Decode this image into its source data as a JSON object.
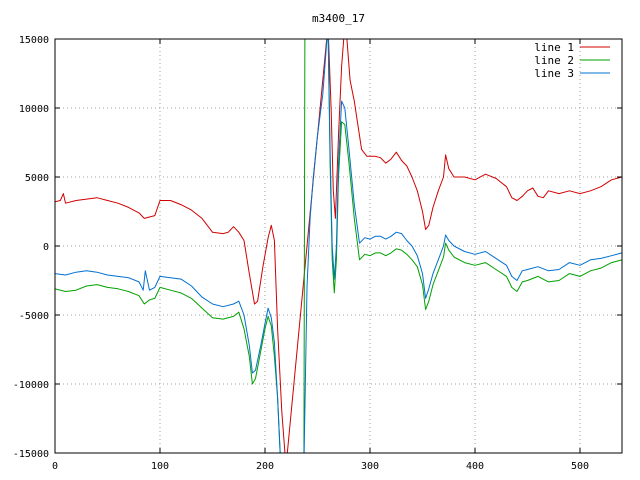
{
  "chart_data": {
    "type": "line",
    "title": "m3400_17",
    "xlabel": "",
    "ylabel": "",
    "xlim": [
      0,
      540
    ],
    "ylim": [
      -15000,
      15000
    ],
    "x_ticks": [
      0,
      100,
      200,
      300,
      400,
      500
    ],
    "y_ticks": [
      -15000,
      -10000,
      -5000,
      0,
      5000,
      10000,
      15000
    ],
    "grid": true,
    "legend_position": "top-right",
    "series": [
      {
        "name": "line 1",
        "color": "#d00000",
        "points": [
          [
            0,
            3200
          ],
          [
            5,
            3300
          ],
          [
            8,
            3800
          ],
          [
            10,
            3100
          ],
          [
            20,
            3300
          ],
          [
            30,
            3400
          ],
          [
            40,
            3500
          ],
          [
            50,
            3300
          ],
          [
            60,
            3100
          ],
          [
            70,
            2800
          ],
          [
            80,
            2400
          ],
          [
            85,
            2000
          ],
          [
            90,
            2100
          ],
          [
            95,
            2200
          ],
          [
            100,
            3300
          ],
          [
            110,
            3300
          ],
          [
            120,
            3000
          ],
          [
            130,
            2600
          ],
          [
            140,
            2000
          ],
          [
            150,
            1000
          ],
          [
            160,
            900
          ],
          [
            165,
            1000
          ],
          [
            170,
            1400
          ],
          [
            175,
            1000
          ],
          [
            180,
            400
          ],
          [
            185,
            -2000
          ],
          [
            190,
            -4200
          ],
          [
            193,
            -4000
          ],
          [
            198,
            -1500
          ],
          [
            203,
            600
          ],
          [
            206,
            1500
          ],
          [
            209,
            400
          ],
          [
            212,
            -6000
          ],
          [
            216,
            -12000
          ],
          [
            220,
            -16000
          ],
          [
            260,
            16000
          ],
          [
            263,
            10000
          ],
          [
            265,
            4000
          ],
          [
            267,
            2000
          ],
          [
            270,
            8000
          ],
          [
            273,
            13000
          ],
          [
            276,
            16000
          ],
          [
            278,
            15000
          ],
          [
            281,
            12000
          ],
          [
            285,
            10500
          ],
          [
            288,
            9000
          ],
          [
            292,
            7000
          ],
          [
            297,
            6500
          ],
          [
            305,
            6500
          ],
          [
            310,
            6400
          ],
          [
            315,
            6000
          ],
          [
            320,
            6300
          ],
          [
            325,
            6800
          ],
          [
            330,
            6200
          ],
          [
            335,
            5800
          ],
          [
            340,
            5000
          ],
          [
            345,
            4000
          ],
          [
            350,
            2500
          ],
          [
            353,
            1200
          ],
          [
            356,
            1500
          ],
          [
            360,
            2800
          ],
          [
            365,
            4000
          ],
          [
            370,
            5000
          ],
          [
            372,
            6600
          ],
          [
            375,
            5600
          ],
          [
            380,
            5000
          ],
          [
            390,
            5000
          ],
          [
            400,
            4800
          ],
          [
            410,
            5200
          ],
          [
            420,
            4900
          ],
          [
            430,
            4300
          ],
          [
            435,
            3500
          ],
          [
            440,
            3300
          ],
          [
            445,
            3600
          ],
          [
            450,
            4000
          ],
          [
            455,
            4200
          ],
          [
            460,
            3600
          ],
          [
            465,
            3500
          ],
          [
            470,
            4000
          ],
          [
            480,
            3800
          ],
          [
            490,
            4000
          ],
          [
            500,
            3800
          ],
          [
            510,
            4000
          ],
          [
            520,
            4300
          ],
          [
            530,
            4800
          ],
          [
            540,
            5000
          ]
        ]
      },
      {
        "name": "line 2",
        "color": "#00a000",
        "points": [
          [
            0,
            -3100
          ],
          [
            10,
            -3300
          ],
          [
            20,
            -3200
          ],
          [
            30,
            -2900
          ],
          [
            40,
            -2800
          ],
          [
            50,
            -3000
          ],
          [
            60,
            -3100
          ],
          [
            70,
            -3300
          ],
          [
            80,
            -3600
          ],
          [
            85,
            -4200
          ],
          [
            90,
            -3900
          ],
          [
            95,
            -3800
          ],
          [
            100,
            -3000
          ],
          [
            110,
            -3200
          ],
          [
            120,
            -3400
          ],
          [
            130,
            -3800
          ],
          [
            140,
            -4500
          ],
          [
            150,
            -5200
          ],
          [
            160,
            -5300
          ],
          [
            170,
            -5100
          ],
          [
            175,
            -4800
          ],
          [
            180,
            -6000
          ],
          [
            185,
            -8000
          ],
          [
            188,
            -10000
          ],
          [
            191,
            -9600
          ],
          [
            196,
            -7600
          ],
          [
            200,
            -6000
          ],
          [
            203,
            -5100
          ],
          [
            206,
            -5800
          ],
          [
            209,
            -8000
          ],
          [
            212,
            -11000
          ],
          [
            215,
            -16000
          ],
          [
            237,
            -16000
          ],
          [
            238,
            16000
          ],
          [
            242,
            16000
          ],
          [
            246,
            16000
          ],
          [
            260,
            16000
          ],
          [
            262,
            6000
          ],
          [
            264,
            -1000
          ],
          [
            266,
            -3400
          ],
          [
            268,
            -1000
          ],
          [
            270,
            5000
          ],
          [
            273,
            9000
          ],
          [
            276,
            8800
          ],
          [
            280,
            6000
          ],
          [
            285,
            2000
          ],
          [
            290,
            -1000
          ],
          [
            295,
            -600
          ],
          [
            300,
            -700
          ],
          [
            305,
            -500
          ],
          [
            310,
            -500
          ],
          [
            315,
            -700
          ],
          [
            320,
            -500
          ],
          [
            325,
            -200
          ],
          [
            330,
            -300
          ],
          [
            335,
            -600
          ],
          [
            340,
            -1000
          ],
          [
            345,
            -1500
          ],
          [
            350,
            -2800
          ],
          [
            353,
            -4600
          ],
          [
            356,
            -4000
          ],
          [
            360,
            -2800
          ],
          [
            365,
            -1800
          ],
          [
            370,
            -800
          ],
          [
            372,
            200
          ],
          [
            375,
            -300
          ],
          [
            380,
            -800
          ],
          [
            390,
            -1200
          ],
          [
            400,
            -1400
          ],
          [
            410,
            -1200
          ],
          [
            420,
            -1700
          ],
          [
            430,
            -2200
          ],
          [
            435,
            -3000
          ],
          [
            440,
            -3300
          ],
          [
            445,
            -2600
          ],
          [
            450,
            -2500
          ],
          [
            460,
            -2200
          ],
          [
            470,
            -2600
          ],
          [
            480,
            -2500
          ],
          [
            490,
            -2000
          ],
          [
            500,
            -2200
          ],
          [
            510,
            -1800
          ],
          [
            520,
            -1600
          ],
          [
            530,
            -1200
          ],
          [
            540,
            -1000
          ]
        ]
      },
      {
        "name": "line 3",
        "color": "#0070d0",
        "points": [
          [
            0,
            -2000
          ],
          [
            10,
            -2100
          ],
          [
            20,
            -1900
          ],
          [
            30,
            -1800
          ],
          [
            40,
            -1900
          ],
          [
            50,
            -2100
          ],
          [
            60,
            -2200
          ],
          [
            70,
            -2300
          ],
          [
            80,
            -2600
          ],
          [
            84,
            -3200
          ],
          [
            86,
            -1800
          ],
          [
            90,
            -3200
          ],
          [
            95,
            -3000
          ],
          [
            100,
            -2200
          ],
          [
            110,
            -2300
          ],
          [
            120,
            -2400
          ],
          [
            130,
            -2900
          ],
          [
            140,
            -3700
          ],
          [
            150,
            -4200
          ],
          [
            160,
            -4400
          ],
          [
            170,
            -4200
          ],
          [
            175,
            -4000
          ],
          [
            180,
            -5000
          ],
          [
            185,
            -7200
          ],
          [
            188,
            -9200
          ],
          [
            191,
            -9000
          ],
          [
            196,
            -7200
          ],
          [
            200,
            -5600
          ],
          [
            203,
            -4500
          ],
          [
            206,
            -5200
          ],
          [
            209,
            -7000
          ],
          [
            212,
            -11000
          ],
          [
            215,
            -16000
          ],
          [
            237,
            -16000
          ],
          [
            240,
            -3000
          ],
          [
            243,
            2000
          ],
          [
            246,
            5000
          ],
          [
            250,
            8000
          ],
          [
            255,
            11000
          ],
          [
            260,
            16000
          ],
          [
            262,
            7000
          ],
          [
            264,
            0
          ],
          [
            266,
            -2400
          ],
          [
            268,
            0
          ],
          [
            270,
            6000
          ],
          [
            273,
            10500
          ],
          [
            276,
            10000
          ],
          [
            280,
            7000
          ],
          [
            285,
            3000
          ],
          [
            290,
            200
          ],
          [
            295,
            600
          ],
          [
            300,
            500
          ],
          [
            305,
            700
          ],
          [
            310,
            700
          ],
          [
            315,
            500
          ],
          [
            320,
            700
          ],
          [
            325,
            1000
          ],
          [
            330,
            900
          ],
          [
            335,
            400
          ],
          [
            340,
            0
          ],
          [
            345,
            -700
          ],
          [
            350,
            -2000
          ],
          [
            353,
            -3800
          ],
          [
            356,
            -3100
          ],
          [
            360,
            -2000
          ],
          [
            365,
            -1000
          ],
          [
            370,
            0
          ],
          [
            372,
            800
          ],
          [
            375,
            400
          ],
          [
            380,
            0
          ],
          [
            390,
            -400
          ],
          [
            400,
            -600
          ],
          [
            410,
            -400
          ],
          [
            420,
            -900
          ],
          [
            430,
            -1400
          ],
          [
            435,
            -2200
          ],
          [
            440,
            -2500
          ],
          [
            445,
            -1800
          ],
          [
            450,
            -1700
          ],
          [
            460,
            -1500
          ],
          [
            470,
            -1800
          ],
          [
            480,
            -1700
          ],
          [
            490,
            -1200
          ],
          [
            500,
            -1400
          ],
          [
            510,
            -1000
          ],
          [
            520,
            -900
          ],
          [
            530,
            -700
          ],
          [
            540,
            -500
          ]
        ]
      }
    ]
  }
}
